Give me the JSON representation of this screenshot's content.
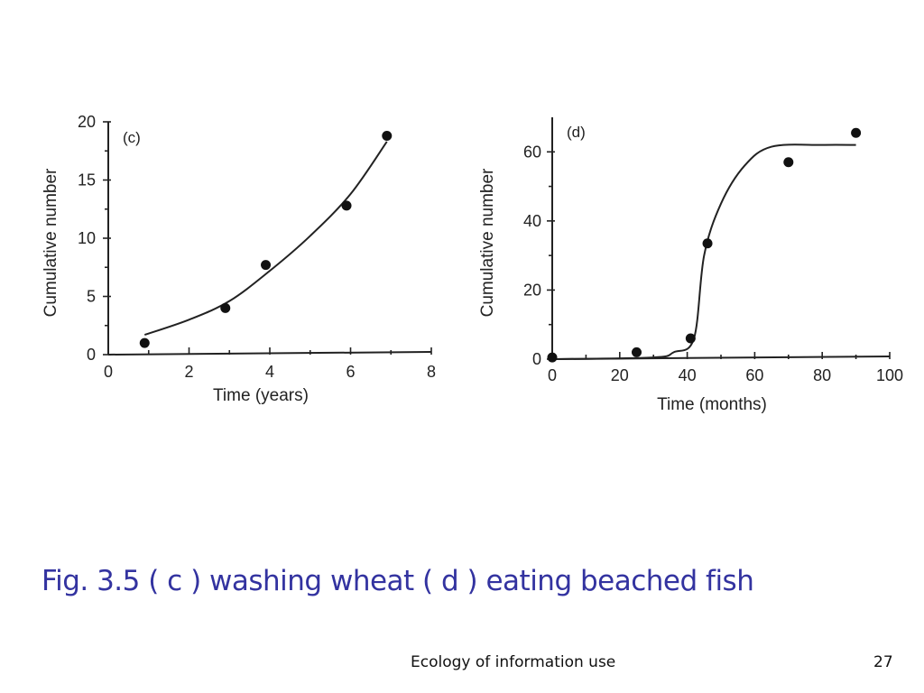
{
  "caption": "Fig. 3.5 ( c ) washing wheat  ( d ) eating beached fish",
  "footer": {
    "text": "Ecology of information use",
    "page_number": "27"
  },
  "colors": {
    "caption": "#3333a0",
    "ink": "#222222"
  },
  "chart_data": [
    {
      "type": "scatter",
      "panel_label": "(c)",
      "xlabel": "Time (years)",
      "ylabel": "Cumulative number",
      "xlim": [
        0,
        8
      ],
      "ylim": [
        0,
        20
      ],
      "x_ticks": [
        0,
        2,
        4,
        6,
        8
      ],
      "y_ticks": [
        0,
        5,
        10,
        15,
        20
      ],
      "points": [
        {
          "x": 0.9,
          "y": 1
        },
        {
          "x": 2.9,
          "y": 4
        },
        {
          "x": 3.9,
          "y": 7.7
        },
        {
          "x": 5.9,
          "y": 12.8
        },
        {
          "x": 6.9,
          "y": 18.8
        }
      ],
      "fit_curve": [
        {
          "x": 0.9,
          "y": 1.7
        },
        {
          "x": 2,
          "y": 3
        },
        {
          "x": 3,
          "y": 4.6
        },
        {
          "x": 4,
          "y": 7.2
        },
        {
          "x": 5,
          "y": 10.2
        },
        {
          "x": 6,
          "y": 13.8
        },
        {
          "x": 6.9,
          "y": 18.3
        }
      ],
      "grid": false
    },
    {
      "type": "scatter",
      "panel_label": "(d)",
      "xlabel": "Time (months)",
      "ylabel": "Cumulative number",
      "xlim": [
        0,
        100
      ],
      "ylim": [
        0,
        70
      ],
      "x_ticks": [
        0,
        20,
        40,
        60,
        80,
        100
      ],
      "y_ticks": [
        0,
        20,
        40,
        60
      ],
      "points": [
        {
          "x": 0,
          "y": 0.5
        },
        {
          "x": 25,
          "y": 2
        },
        {
          "x": 41,
          "y": 6
        },
        {
          "x": 46,
          "y": 33.5
        },
        {
          "x": 70,
          "y": 57
        },
        {
          "x": 90,
          "y": 65.5
        }
      ],
      "fit_curve": [
        {
          "x": 0,
          "y": 0
        },
        {
          "x": 30,
          "y": 0.5
        },
        {
          "x": 36,
          "y": 2
        },
        {
          "x": 42,
          "y": 6
        },
        {
          "x": 45,
          "y": 30
        },
        {
          "x": 50,
          "y": 45
        },
        {
          "x": 57,
          "y": 56
        },
        {
          "x": 65,
          "y": 61.5
        },
        {
          "x": 80,
          "y": 62
        },
        {
          "x": 90,
          "y": 62
        }
      ],
      "grid": false
    }
  ]
}
